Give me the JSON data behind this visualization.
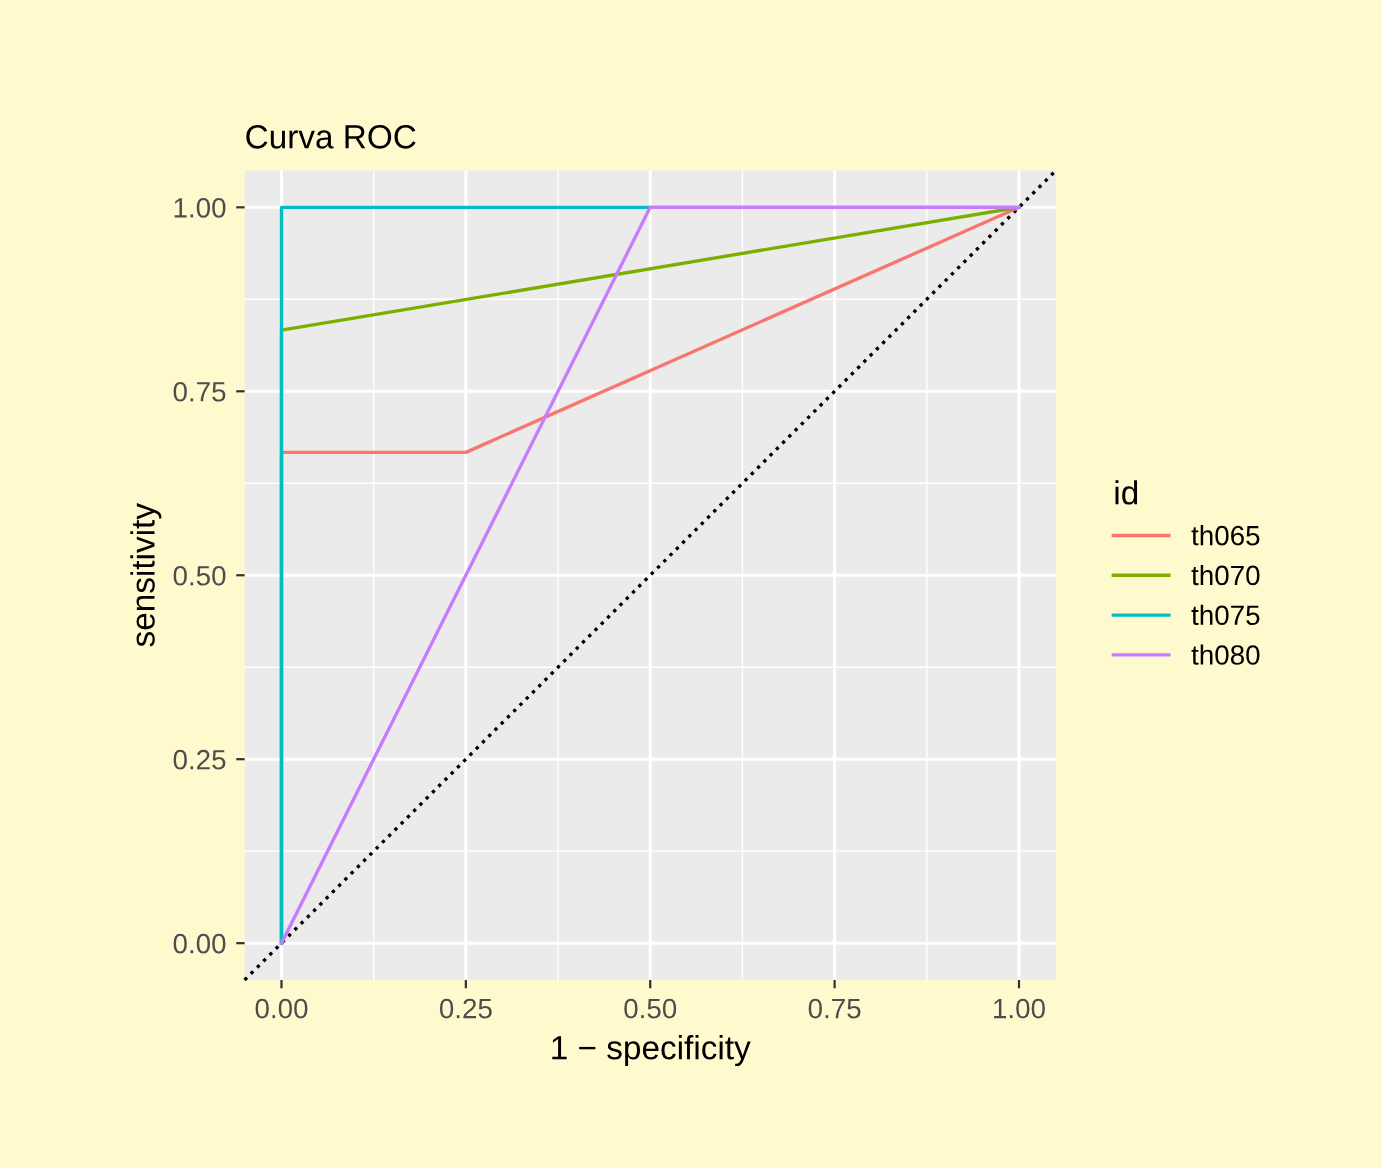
{
  "chart_data": {
    "type": "line",
    "title": "Curva ROC",
    "xlabel": "1 − specificity",
    "ylabel": "sensitivity",
    "legend_title": "id",
    "legend": "right",
    "grid": true,
    "xlim": [
      -0.05,
      1.05
    ],
    "ylim": [
      -0.05,
      1.05
    ],
    "xticks": [
      {
        "value": 0,
        "label": "0.00"
      },
      {
        "value": 0.25,
        "label": "0.25"
      },
      {
        "value": 0.5,
        "label": "0.50"
      },
      {
        "value": 0.75,
        "label": "0.75"
      },
      {
        "value": 1,
        "label": "1.00"
      }
    ],
    "yticks": [
      {
        "value": 0,
        "label": "0.00"
      },
      {
        "value": 0.25,
        "label": "0.25"
      },
      {
        "value": 0.5,
        "label": "0.50"
      },
      {
        "value": 0.75,
        "label": "0.75"
      },
      {
        "value": 1,
        "label": "1.00"
      }
    ],
    "series": [
      {
        "x": [
          -0.05,
          1.05
        ],
        "values": [
          -0.05,
          1.05
        ],
        "color": "#000000",
        "line_style": "dotted"
      },
      {
        "name": "th065",
        "color": "#f8766d",
        "x": [
          0,
          0,
          0.25,
          1
        ],
        "values": [
          0,
          0.667,
          0.667,
          1
        ]
      },
      {
        "name": "th070",
        "color": "#7cae00",
        "x": [
          0,
          0,
          1
        ],
        "values": [
          0,
          0.833,
          1
        ]
      },
      {
        "name": "th075",
        "color": "#00bfc4",
        "x": [
          0,
          0,
          1
        ],
        "values": [
          0,
          1,
          1
        ]
      },
      {
        "name": "th080",
        "color": "#c77cff",
        "x": [
          0,
          0.5,
          1
        ],
        "values": [
          0,
          1,
          1
        ]
      }
    ]
  }
}
